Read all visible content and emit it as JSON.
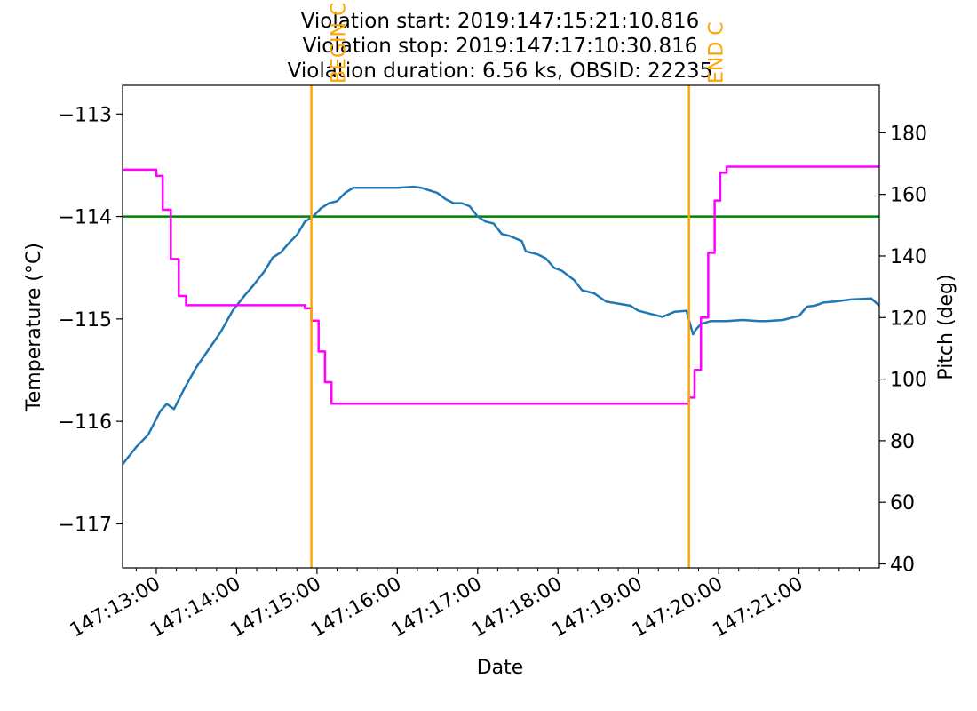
{
  "chart_data": {
    "type": "line",
    "title_lines": [
      "Violation start: 2019:147:15:21:10.816",
      "Violation stop: 2019:147:17:10:30.816",
      "Violation duration: 6.56 ks, OBSID: 22235"
    ],
    "xlabel": "Date",
    "ylabel_left": "Temperature ($^\\circ$C)",
    "ylabel_left_display": "Temperature (°C)",
    "ylabel_right": "Pitch (deg)",
    "xlim_hours": [
      12.58,
      22.0
    ],
    "ylim_left": [
      -117.43,
      -112.72
    ],
    "ylim_right": [
      38.7,
      195.4
    ],
    "x_ticks": [
      {
        "hour": 13,
        "label": "147:13:00"
      },
      {
        "hour": 14,
        "label": "147:14:00"
      },
      {
        "hour": 15,
        "label": "147:15:00"
      },
      {
        "hour": 16,
        "label": "147:16:00"
      },
      {
        "hour": 17,
        "label": "147:17:00"
      },
      {
        "hour": 18,
        "label": "147:18:00"
      },
      {
        "hour": 19,
        "label": "147:19:00"
      },
      {
        "hour": 20,
        "label": "147:20:00"
      },
      {
        "hour": 21,
        "label": "147:21:00"
      }
    ],
    "y_left_ticks": [
      {
        "value": -113,
        "label": "−113"
      },
      {
        "value": -114,
        "label": "−114"
      },
      {
        "value": -115,
        "label": "−115"
      },
      {
        "value": -116,
        "label": "−116"
      },
      {
        "value": -117,
        "label": "−117"
      }
    ],
    "y_right_ticks": [
      {
        "value": 40,
        "label": "40"
      },
      {
        "value": 60,
        "label": "60"
      },
      {
        "value": 80,
        "label": "80"
      },
      {
        "value": 100,
        "label": "100"
      },
      {
        "value": 120,
        "label": "120"
      },
      {
        "value": 140,
        "label": "140"
      },
      {
        "value": 160,
        "label": "160"
      },
      {
        "value": 180,
        "label": "180"
      }
    ],
    "threshold": {
      "value": -114.0,
      "color": "#008000"
    },
    "vlines": [
      {
        "hour": 14.93,
        "label": "BEGIN C",
        "color": "#ffa500"
      },
      {
        "hour": 19.63,
        "label": "END C",
        "color": "#ffa500"
      }
    ],
    "series": [
      {
        "name": "Temperature",
        "axis": "left",
        "color": "#1f77b4",
        "x": [
          12.58,
          12.62,
          12.75,
          12.9,
          13.05,
          13.13,
          13.22,
          13.35,
          13.5,
          13.65,
          13.8,
          13.95,
          14.1,
          14.2,
          14.35,
          14.45,
          14.55,
          14.65,
          14.75,
          14.85,
          14.95,
          15.05,
          15.15,
          15.25,
          15.35,
          15.45,
          15.55,
          15.65,
          15.8,
          16.0,
          16.2,
          16.3,
          16.5,
          16.6,
          16.7,
          16.8,
          16.9,
          17.0,
          17.1,
          17.2,
          17.3,
          17.4,
          17.55,
          17.6,
          17.75,
          17.85,
          17.95,
          18.05,
          18.2,
          18.3,
          18.45,
          18.6,
          18.75,
          18.9,
          19.0,
          19.15,
          19.3,
          19.45,
          19.6,
          19.68,
          19.72,
          19.78,
          19.9,
          20.1,
          20.3,
          20.5,
          20.6,
          20.8,
          21.0,
          21.1,
          21.2,
          21.3,
          21.45,
          21.65,
          21.9,
          22.0
        ],
        "y": [
          -116.42,
          -116.38,
          -116.25,
          -116.13,
          -115.9,
          -115.83,
          -115.88,
          -115.68,
          -115.47,
          -115.3,
          -115.13,
          -114.92,
          -114.77,
          -114.68,
          -114.53,
          -114.4,
          -114.35,
          -114.26,
          -114.18,
          -114.05,
          -114.0,
          -113.92,
          -113.87,
          -113.85,
          -113.77,
          -113.72,
          -113.72,
          -113.72,
          -113.72,
          -113.72,
          -113.71,
          -113.72,
          -113.77,
          -113.83,
          -113.87,
          -113.87,
          -113.9,
          -114.0,
          -114.05,
          -114.07,
          -114.17,
          -114.19,
          -114.24,
          -114.34,
          -114.37,
          -114.41,
          -114.5,
          -114.53,
          -114.62,
          -114.72,
          -114.75,
          -114.83,
          -114.85,
          -114.87,
          -114.92,
          -114.95,
          -114.98,
          -114.93,
          -114.92,
          -115.15,
          -115.1,
          -115.05,
          -115.02,
          -115.02,
          -115.01,
          -115.02,
          -115.02,
          -115.01,
          -114.97,
          -114.88,
          -114.87,
          -114.84,
          -114.83,
          -114.81,
          -114.8,
          -114.87
        ]
      },
      {
        "name": "Pitch",
        "axis": "right",
        "color": "#ff00ff",
        "x": [
          12.58,
          13.0,
          13.0,
          13.08,
          13.08,
          13.18,
          13.18,
          13.28,
          13.28,
          13.37,
          13.37,
          14.85,
          14.85,
          14.93,
          14.93,
          15.02,
          15.02,
          15.1,
          15.1,
          15.18,
          15.18,
          19.63,
          19.63,
          19.7,
          19.7,
          19.78,
          19.78,
          19.87,
          19.87,
          19.95,
          19.95,
          20.02,
          20.02,
          20.1,
          20.1,
          21.0,
          21.5,
          22.0
        ],
        "y": [
          168,
          168,
          166,
          166,
          155,
          155,
          139,
          139,
          127,
          127,
          124,
          124,
          123,
          123,
          119,
          119,
          109,
          109,
          99,
          99,
          92,
          92,
          94,
          94,
          103,
          103,
          120,
          120,
          141,
          141,
          158,
          158,
          167,
          167,
          169,
          169,
          169,
          169
        ]
      }
    ]
  }
}
